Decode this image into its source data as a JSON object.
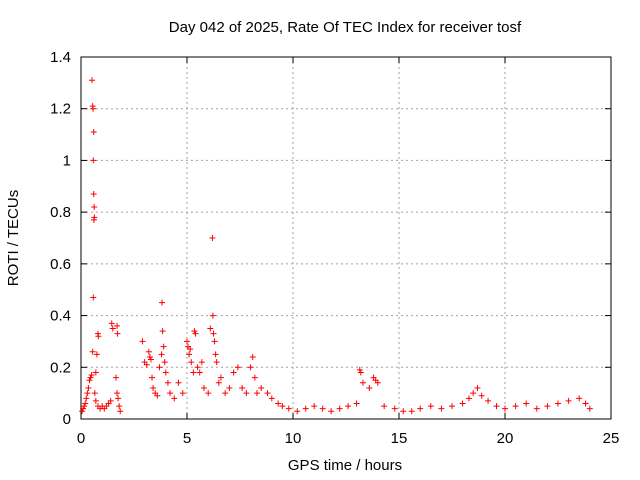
{
  "chart_data": {
    "type": "scatter",
    "title": "Day 042 of 2025, Rate Of TEC Index for receiver tosf",
    "xlabel": "GPS time / hours",
    "ylabel": "ROTI / TECUs",
    "xlim": [
      0,
      25
    ],
    "ylim": [
      0,
      1.4
    ],
    "xticks": [
      "0",
      "5",
      "10",
      "15",
      "20",
      "25"
    ],
    "yticks": [
      "0",
      "0.2",
      "0.4",
      "0.6",
      "0.8",
      "1",
      "1.2",
      "1.4"
    ],
    "grid": true,
    "marker": "+",
    "color": "#ff0000",
    "points": [
      [
        0.05,
        0.03
      ],
      [
        0.1,
        0.04
      ],
      [
        0.15,
        0.05
      ],
      [
        0.2,
        0.06
      ],
      [
        0.25,
        0.08
      ],
      [
        0.3,
        0.1
      ],
      [
        0.35,
        0.12
      ],
      [
        0.4,
        0.15
      ],
      [
        0.45,
        0.16
      ],
      [
        0.5,
        0.17
      ],
      [
        0.52,
        1.31
      ],
      [
        0.55,
        1.21
      ],
      [
        0.57,
        1.2
      ],
      [
        0.6,
        1.11
      ],
      [
        0.58,
        1.0
      ],
      [
        0.6,
        0.87
      ],
      [
        0.62,
        0.82
      ],
      [
        0.63,
        0.78
      ],
      [
        0.61,
        0.77
      ],
      [
        0.58,
        0.47
      ],
      [
        0.55,
        0.26
      ],
      [
        0.75,
        0.25
      ],
      [
        0.8,
        0.33
      ],
      [
        0.82,
        0.32
      ],
      [
        0.7,
        0.18
      ],
      [
        0.65,
        0.1
      ],
      [
        0.7,
        0.07
      ],
      [
        0.8,
        0.05
      ],
      [
        0.9,
        0.04
      ],
      [
        1.0,
        0.05
      ],
      [
        1.1,
        0.04
      ],
      [
        1.2,
        0.05
      ],
      [
        1.3,
        0.06
      ],
      [
        1.4,
        0.07
      ],
      [
        1.45,
        0.37
      ],
      [
        1.5,
        0.35
      ],
      [
        1.7,
        0.36
      ],
      [
        1.72,
        0.33
      ],
      [
        1.65,
        0.16
      ],
      [
        1.7,
        0.1
      ],
      [
        1.75,
        0.08
      ],
      [
        1.8,
        0.05
      ],
      [
        1.85,
        0.03
      ],
      [
        2.9,
        0.3
      ],
      [
        3.0,
        0.22
      ],
      [
        3.1,
        0.21
      ],
      [
        3.2,
        0.26
      ],
      [
        3.25,
        0.24
      ],
      [
        3.3,
        0.23
      ],
      [
        3.35,
        0.16
      ],
      [
        3.4,
        0.12
      ],
      [
        3.5,
        0.1
      ],
      [
        3.6,
        0.09
      ],
      [
        3.7,
        0.2
      ],
      [
        3.8,
        0.25
      ],
      [
        3.82,
        0.45
      ],
      [
        3.85,
        0.34
      ],
      [
        3.9,
        0.28
      ],
      [
        3.95,
        0.22
      ],
      [
        4.0,
        0.18
      ],
      [
        4.1,
        0.14
      ],
      [
        4.2,
        0.1
      ],
      [
        4.4,
        0.08
      ],
      [
        4.6,
        0.14
      ],
      [
        4.8,
        0.1
      ],
      [
        5.0,
        0.3
      ],
      [
        5.05,
        0.28
      ],
      [
        5.1,
        0.25
      ],
      [
        5.15,
        0.27
      ],
      [
        5.2,
        0.22
      ],
      [
        5.3,
        0.18
      ],
      [
        5.35,
        0.34
      ],
      [
        5.4,
        0.33
      ],
      [
        5.5,
        0.2
      ],
      [
        5.6,
        0.18
      ],
      [
        5.7,
        0.22
      ],
      [
        5.8,
        0.12
      ],
      [
        6.0,
        0.1
      ],
      [
        6.1,
        0.35
      ],
      [
        6.2,
        0.7
      ],
      [
        6.22,
        0.4
      ],
      [
        6.25,
        0.33
      ],
      [
        6.3,
        0.3
      ],
      [
        6.35,
        0.25
      ],
      [
        6.4,
        0.22
      ],
      [
        6.5,
        0.14
      ],
      [
        6.6,
        0.16
      ],
      [
        6.8,
        0.1
      ],
      [
        7.0,
        0.12
      ],
      [
        7.2,
        0.18
      ],
      [
        7.4,
        0.2
      ],
      [
        7.6,
        0.12
      ],
      [
        7.8,
        0.1
      ],
      [
        8.0,
        0.2
      ],
      [
        8.1,
        0.24
      ],
      [
        8.2,
        0.16
      ],
      [
        8.3,
        0.1
      ],
      [
        8.5,
        0.12
      ],
      [
        8.8,
        0.1
      ],
      [
        9.0,
        0.08
      ],
      [
        9.3,
        0.06
      ],
      [
        9.5,
        0.05
      ],
      [
        9.8,
        0.04
      ],
      [
        10.2,
        0.03
      ],
      [
        10.6,
        0.04
      ],
      [
        11.0,
        0.05
      ],
      [
        11.4,
        0.04
      ],
      [
        11.8,
        0.03
      ],
      [
        12.2,
        0.04
      ],
      [
        12.6,
        0.05
      ],
      [
        13.0,
        0.06
      ],
      [
        13.15,
        0.19
      ],
      [
        13.2,
        0.18
      ],
      [
        13.3,
        0.14
      ],
      [
        13.6,
        0.12
      ],
      [
        13.8,
        0.16
      ],
      [
        13.9,
        0.15
      ],
      [
        14.0,
        0.14
      ],
      [
        14.3,
        0.05
      ],
      [
        14.8,
        0.04
      ],
      [
        15.2,
        0.03
      ],
      [
        15.6,
        0.03
      ],
      [
        16.0,
        0.04
      ],
      [
        16.5,
        0.05
      ],
      [
        17.0,
        0.04
      ],
      [
        17.5,
        0.05
      ],
      [
        18.0,
        0.06
      ],
      [
        18.3,
        0.08
      ],
      [
        18.5,
        0.1
      ],
      [
        18.7,
        0.12
      ],
      [
        18.9,
        0.09
      ],
      [
        19.2,
        0.07
      ],
      [
        19.6,
        0.05
      ],
      [
        20.0,
        0.04
      ],
      [
        20.5,
        0.05
      ],
      [
        21.0,
        0.06
      ],
      [
        21.5,
        0.04
      ],
      [
        22.0,
        0.05
      ],
      [
        22.5,
        0.06
      ],
      [
        23.0,
        0.07
      ],
      [
        23.5,
        0.08
      ],
      [
        23.8,
        0.06
      ],
      [
        24.0,
        0.04
      ]
    ]
  }
}
